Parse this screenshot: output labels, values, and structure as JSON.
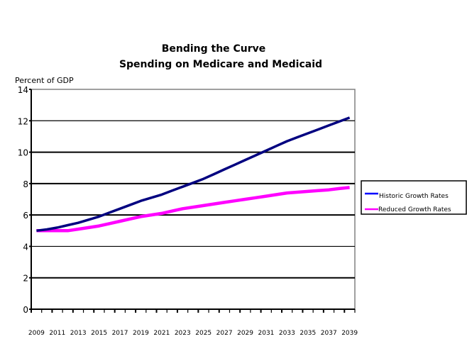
{
  "chart_data": {
    "type": "line",
    "title": "Bending the Curve",
    "subtitle": "Spending on Medicare and Medicaid",
    "xlabel": "",
    "ylabel": "Percent of GDP",
    "ylim": [
      0,
      14
    ],
    "yticks": [
      "0",
      "2",
      "4",
      "6",
      "8",
      "10",
      "12",
      "14"
    ],
    "ytick_values": [
      0,
      2,
      4,
      6,
      8,
      10,
      12,
      14
    ],
    "grid": true,
    "legend_position": "right",
    "x": [
      2009,
      2010,
      2011,
      2012,
      2013,
      2014,
      2015,
      2016,
      2017,
      2018,
      2019,
      2020,
      2021,
      2022,
      2023,
      2024,
      2025,
      2026,
      2027,
      2028,
      2029,
      2030,
      2031,
      2032,
      2033,
      2034,
      2035,
      2036,
      2037,
      2038,
      2039
    ],
    "xtick_labels": [
      "2009",
      "2011",
      "2013",
      "2015",
      "2017",
      "2019",
      "2021",
      "2023",
      "2025",
      "2027",
      "2029",
      "2031",
      "2033",
      "2035",
      "2037",
      "2039"
    ],
    "series": [
      {
        "name": "Historic Growth Rates",
        "color": "#000080",
        "legend_color": "#0000ff",
        "values": [
          5.0,
          5.08,
          5.2,
          5.35,
          5.5,
          5.7,
          5.9,
          6.15,
          6.4,
          6.65,
          6.9,
          7.1,
          7.3,
          7.55,
          7.8,
          8.05,
          8.3,
          8.6,
          8.9,
          9.2,
          9.5,
          9.8,
          10.1,
          10.4,
          10.7,
          10.95,
          11.2,
          11.45,
          11.7,
          11.95,
          12.2
        ]
      },
      {
        "name": "Reduced Growth Rates",
        "color": "#ff00ff",
        "legend_color": "#ff00ff",
        "values": [
          5.0,
          5.0,
          5.0,
          5.0,
          5.1,
          5.2,
          5.3,
          5.45,
          5.6,
          5.75,
          5.9,
          6.0,
          6.1,
          6.25,
          6.4,
          6.5,
          6.6,
          6.7,
          6.8,
          6.9,
          7.0,
          7.1,
          7.2,
          7.3,
          7.4,
          7.45,
          7.5,
          7.55,
          7.6,
          7.68,
          7.75
        ]
      }
    ]
  }
}
